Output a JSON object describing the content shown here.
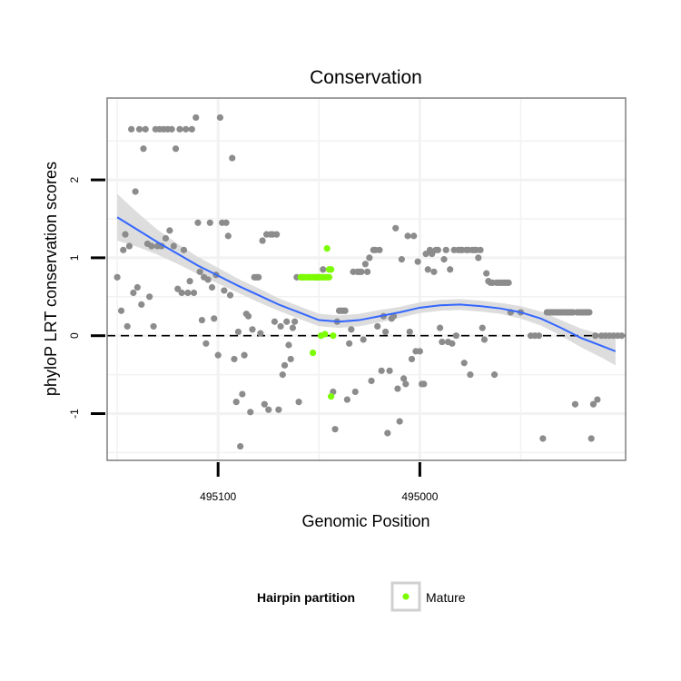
{
  "chart_data": {
    "type": "scatter",
    "title": "Conservation",
    "xlabel": "Genomic Position",
    "ylabel": "phyloP LRT conservation scores",
    "x_axis_reversed": true,
    "xlim": [
      495155,
      494898
    ],
    "ylim": [
      -1.6,
      3.05
    ],
    "x_ticks": [
      495100,
      495000
    ],
    "x_tick_labels": [
      "495100",
      "495000"
    ],
    "y_ticks": [
      -1,
      0,
      1,
      2
    ],
    "y_tick_labels": [
      "-1",
      "0",
      "1",
      "2"
    ],
    "grid": true,
    "background": "#ffffff",
    "point_color": "#8c8c8c",
    "highlight_color": "#7cfc00",
    "smooth_color": "#3366ff",
    "band_color": "#d9d9d9",
    "reference_line": {
      "y": 0,
      "style": "dashed",
      "color": "#000000"
    },
    "legend": {
      "title": "Hairpin partition",
      "placement": "bottom",
      "entries": [
        {
          "label": "Mature",
          "color": "#7cfc00"
        }
      ]
    },
    "series": [
      {
        "role": "all",
        "color": "#8c8c8c",
        "points": [
          [
            495150,
            0.75
          ],
          [
            495148,
            0.32
          ],
          [
            495147,
            1.1
          ],
          [
            495146,
            1.3
          ],
          [
            495145,
            0.12
          ],
          [
            495144,
            1.15
          ],
          [
            495143,
            2.65
          ],
          [
            495142,
            0.55
          ],
          [
            495141,
            1.85
          ],
          [
            495140,
            0.62
          ],
          [
            495139,
            2.65
          ],
          [
            495138,
            0.4
          ],
          [
            495137,
            2.4
          ],
          [
            495136,
            2.65
          ],
          [
            495135,
            1.18
          ],
          [
            495134,
            0.5
          ],
          [
            495133,
            1.15
          ],
          [
            495132,
            0.12
          ],
          [
            495131,
            2.65
          ],
          [
            495130,
            1.15
          ],
          [
            495129,
            2.65
          ],
          [
            495128,
            1.15
          ],
          [
            495127,
            2.65
          ],
          [
            495126,
            1.25
          ],
          [
            495125,
            2.65
          ],
          [
            495124,
            1.35
          ],
          [
            495123,
            2.65
          ],
          [
            495122,
            1.15
          ],
          [
            495121,
            2.4
          ],
          [
            495120,
            0.6
          ],
          [
            495119,
            2.65
          ],
          [
            495118,
            0.55
          ],
          [
            495117,
            1.1
          ],
          [
            495116,
            2.65
          ],
          [
            495115,
            0.55
          ],
          [
            495114,
            0.7
          ],
          [
            495113,
            2.65
          ],
          [
            495112,
            0.55
          ],
          [
            495111,
            2.8
          ],
          [
            495110,
            1.45
          ],
          [
            495109,
            0.82
          ],
          [
            495108,
            0.2
          ],
          [
            495107,
            0.75
          ],
          [
            495106,
            -0.1
          ],
          [
            495105,
            0.72
          ],
          [
            495104,
            1.45
          ],
          [
            495103,
            0.62
          ],
          [
            495102,
            0.22
          ],
          [
            495101,
            0.78
          ],
          [
            495100,
            -0.25
          ],
          [
            495099,
            2.8
          ],
          [
            495098,
            1.45
          ],
          [
            495097,
            0.58
          ],
          [
            495096,
            1.45
          ],
          [
            495095,
            1.28
          ],
          [
            495094,
            0.52
          ],
          [
            495093,
            2.28
          ],
          [
            495092,
            -0.3
          ],
          [
            495091,
            -0.85
          ],
          [
            495090,
            0.05
          ],
          [
            495089,
            -1.42
          ],
          [
            495088,
            -0.75
          ],
          [
            495087,
            -0.25
          ],
          [
            495086,
            0.28
          ],
          [
            495085,
            0.25
          ],
          [
            495084,
            -0.98
          ],
          [
            495083,
            0.08
          ],
          [
            495082,
            0.75
          ],
          [
            495081,
            0.75
          ],
          [
            495080,
            0.75
          ],
          [
            495079,
            0.03
          ],
          [
            495078,
            1.22
          ],
          [
            495077,
            -0.88
          ],
          [
            495076,
            1.3
          ],
          [
            495075,
            -0.95
          ],
          [
            495074,
            1.3
          ],
          [
            495073,
            1.3
          ],
          [
            495072,
            0.18
          ],
          [
            495071,
            1.3
          ],
          [
            495070,
            -0.95
          ],
          [
            495069,
            0.12
          ],
          [
            495068,
            -0.5
          ],
          [
            495067,
            -0.38
          ],
          [
            495066,
            0.18
          ],
          [
            495065,
            -0.12
          ],
          [
            495064,
            -0.3
          ],
          [
            495063,
            0.1
          ],
          [
            495062,
            0.18
          ],
          [
            495061,
            0.75
          ],
          [
            495060,
            -0.85
          ],
          [
            495059,
            0.75
          ],
          [
            495058,
            0.75
          ],
          [
            495055,
            0.75
          ],
          [
            495052,
            0.75
          ],
          [
            495051,
            0.75
          ],
          [
            495050,
            0.75
          ],
          [
            495049,
            0.0
          ],
          [
            495048,
            0.85
          ],
          [
            495043,
            -0.72
          ],
          [
            495042,
            -1.2
          ],
          [
            495041,
            0.18
          ],
          [
            495040,
            0.32
          ],
          [
            495039,
            0.32
          ],
          [
            495038,
            0.32
          ],
          [
            495037,
            0.32
          ],
          [
            495036,
            -0.82
          ],
          [
            495035,
            -0.1
          ],
          [
            495034,
            0.08
          ],
          [
            495033,
            0.82
          ],
          [
            495032,
            -0.72
          ],
          [
            495031,
            0.82
          ],
          [
            495030,
            0.82
          ],
          [
            495029,
            0.82
          ],
          [
            495028,
            -0.05
          ],
          [
            495027,
            0.92
          ],
          [
            495026,
            0.82
          ],
          [
            495025,
            1.0
          ],
          [
            495024,
            -0.58
          ],
          [
            495023,
            1.1
          ],
          [
            495022,
            1.1
          ],
          [
            495021,
            0.12
          ],
          [
            495020,
            1.1
          ],
          [
            495019,
            -0.45
          ],
          [
            495018,
            0.25
          ],
          [
            495017,
            0.05
          ],
          [
            495016,
            -1.25
          ],
          [
            495015,
            -0.45
          ],
          [
            495014,
            0.22
          ],
          [
            495013,
            0.25
          ],
          [
            495012,
            1.38
          ],
          [
            495011,
            -0.68
          ],
          [
            495010,
            -1.1
          ],
          [
            495009,
            0.98
          ],
          [
            495008,
            -0.55
          ],
          [
            495007,
            -0.62
          ],
          [
            495006,
            1.28
          ],
          [
            495005,
            0.05
          ],
          [
            495004,
            -0.3
          ],
          [
            495003,
            1.28
          ],
          [
            495002,
            -0.2
          ],
          [
            495001,
            0.95
          ],
          [
            495000,
            -0.2
          ],
          [
            494999,
            -0.62
          ],
          [
            494998,
            -0.62
          ],
          [
            494997,
            1.05
          ],
          [
            494996,
            0.85
          ],
          [
            494995,
            1.1
          ],
          [
            494994,
            1.05
          ],
          [
            494993,
            0.82
          ],
          [
            494992,
            1.1
          ],
          [
            494991,
            1.1
          ],
          [
            494990,
            0.1
          ],
          [
            494989,
            -0.08
          ],
          [
            494988,
            0.98
          ],
          [
            494987,
            1.1
          ],
          [
            494986,
            -0.08
          ],
          [
            494985,
            0.85
          ],
          [
            494984,
            -0.1
          ],
          [
            494983,
            1.1
          ],
          [
            494982,
            0.0
          ],
          [
            494981,
            1.1
          ],
          [
            494980,
            1.1
          ],
          [
            494979,
            1.1
          ],
          [
            494978,
            -0.35
          ],
          [
            494977,
            1.1
          ],
          [
            494976,
            1.1
          ],
          [
            494975,
            -0.5
          ],
          [
            494974,
            1.1
          ],
          [
            494973,
            1.1
          ],
          [
            494972,
            1.1
          ],
          [
            494971,
            1.0
          ],
          [
            494970,
            1.1
          ],
          [
            494969,
            0.1
          ],
          [
            494968,
            -0.05
          ],
          [
            494967,
            0.8
          ],
          [
            494966,
            0.7
          ],
          [
            494965,
            0.68
          ],
          [
            494964,
            0.68
          ],
          [
            494963,
            -0.5
          ],
          [
            494962,
            0.68
          ],
          [
            494961,
            0.68
          ],
          [
            494960,
            0.68
          ],
          [
            494959,
            0.68
          ],
          [
            494958,
            0.68
          ],
          [
            494957,
            0.68
          ],
          [
            494956,
            0.68
          ],
          [
            494955,
            0.3
          ],
          [
            494950,
            0.3
          ],
          [
            494945,
            0.0
          ],
          [
            494943,
            0.0
          ],
          [
            494941,
            0.0
          ],
          [
            494939,
            -1.32
          ],
          [
            494937,
            0.3
          ],
          [
            494936,
            0.3
          ],
          [
            494935,
            0.3
          ],
          [
            494934,
            0.3
          ],
          [
            494933,
            0.3
          ],
          [
            494932,
            0.3
          ],
          [
            494931,
            0.3
          ],
          [
            494930,
            0.3
          ],
          [
            494929,
            0.3
          ],
          [
            494928,
            0.3
          ],
          [
            494927,
            0.3
          ],
          [
            494926,
            0.3
          ],
          [
            494925,
            0.3
          ],
          [
            494924,
            0.3
          ],
          [
            494923,
            -0.88
          ],
          [
            494922,
            0.3
          ],
          [
            494921,
            0.3
          ],
          [
            494920,
            0.3
          ],
          [
            494919,
            0.3
          ],
          [
            494918,
            0.3
          ],
          [
            494917,
            0.3
          ],
          [
            494916,
            0.3
          ],
          [
            494915,
            -1.32
          ],
          [
            494914,
            -0.88
          ],
          [
            494913,
            0.0
          ],
          [
            494912,
            -0.82
          ],
          [
            494910,
            0.0
          ],
          [
            494908,
            0.0
          ],
          [
            494906,
            0.0
          ],
          [
            494904,
            0.0
          ],
          [
            494902,
            0.0
          ],
          [
            494900,
            0.0
          ]
        ]
      },
      {
        "role": "Mature",
        "color": "#7cfc00",
        "points": [
          [
            495059,
            0.75
          ],
          [
            495058,
            0.75
          ],
          [
            495057,
            0.75
          ],
          [
            495056,
            0.75
          ],
          [
            495055,
            0.75
          ],
          [
            495054,
            0.75
          ],
          [
            495053,
            0.75
          ],
          [
            495052,
            0.75
          ],
          [
            495051,
            0.75
          ],
          [
            495050,
            0.75
          ],
          [
            495049,
            0.75
          ],
          [
            495048,
            0.75
          ],
          [
            495047,
            0.75
          ],
          [
            495046,
            0.75
          ],
          [
            495045,
            0.75
          ],
          [
            495053,
            -0.22
          ],
          [
            495049,
            0.0
          ],
          [
            495047,
            0.02
          ],
          [
            495046,
            1.12
          ],
          [
            495045,
            0.85
          ],
          [
            495044,
            0.85
          ],
          [
            495043,
            0.0
          ],
          [
            495044,
            -0.78
          ]
        ]
      }
    ],
    "smooth": {
      "method": "loess",
      "x": [
        495150,
        495140,
        495130,
        495120,
        495110,
        495100,
        495090,
        495080,
        495070,
        495060,
        495050,
        495040,
        495030,
        495020,
        495010,
        495000,
        494990,
        494980,
        494970,
        494960,
        494950,
        494940,
        494930,
        494920,
        494910,
        494903
      ],
      "y": [
        1.52,
        1.36,
        1.2,
        1.05,
        0.9,
        0.77,
        0.64,
        0.52,
        0.4,
        0.3,
        0.2,
        0.18,
        0.2,
        0.25,
        0.3,
        0.36,
        0.39,
        0.4,
        0.38,
        0.35,
        0.3,
        0.22,
        0.1,
        -0.03,
        -0.13,
        -0.2
      ],
      "band_half_width": [
        0.3,
        0.22,
        0.16,
        0.13,
        0.11,
        0.1,
        0.09,
        0.09,
        0.08,
        0.08,
        0.08,
        0.08,
        0.08,
        0.08,
        0.07,
        0.07,
        0.07,
        0.07,
        0.07,
        0.07,
        0.08,
        0.09,
        0.1,
        0.12,
        0.15,
        0.18
      ]
    }
  }
}
